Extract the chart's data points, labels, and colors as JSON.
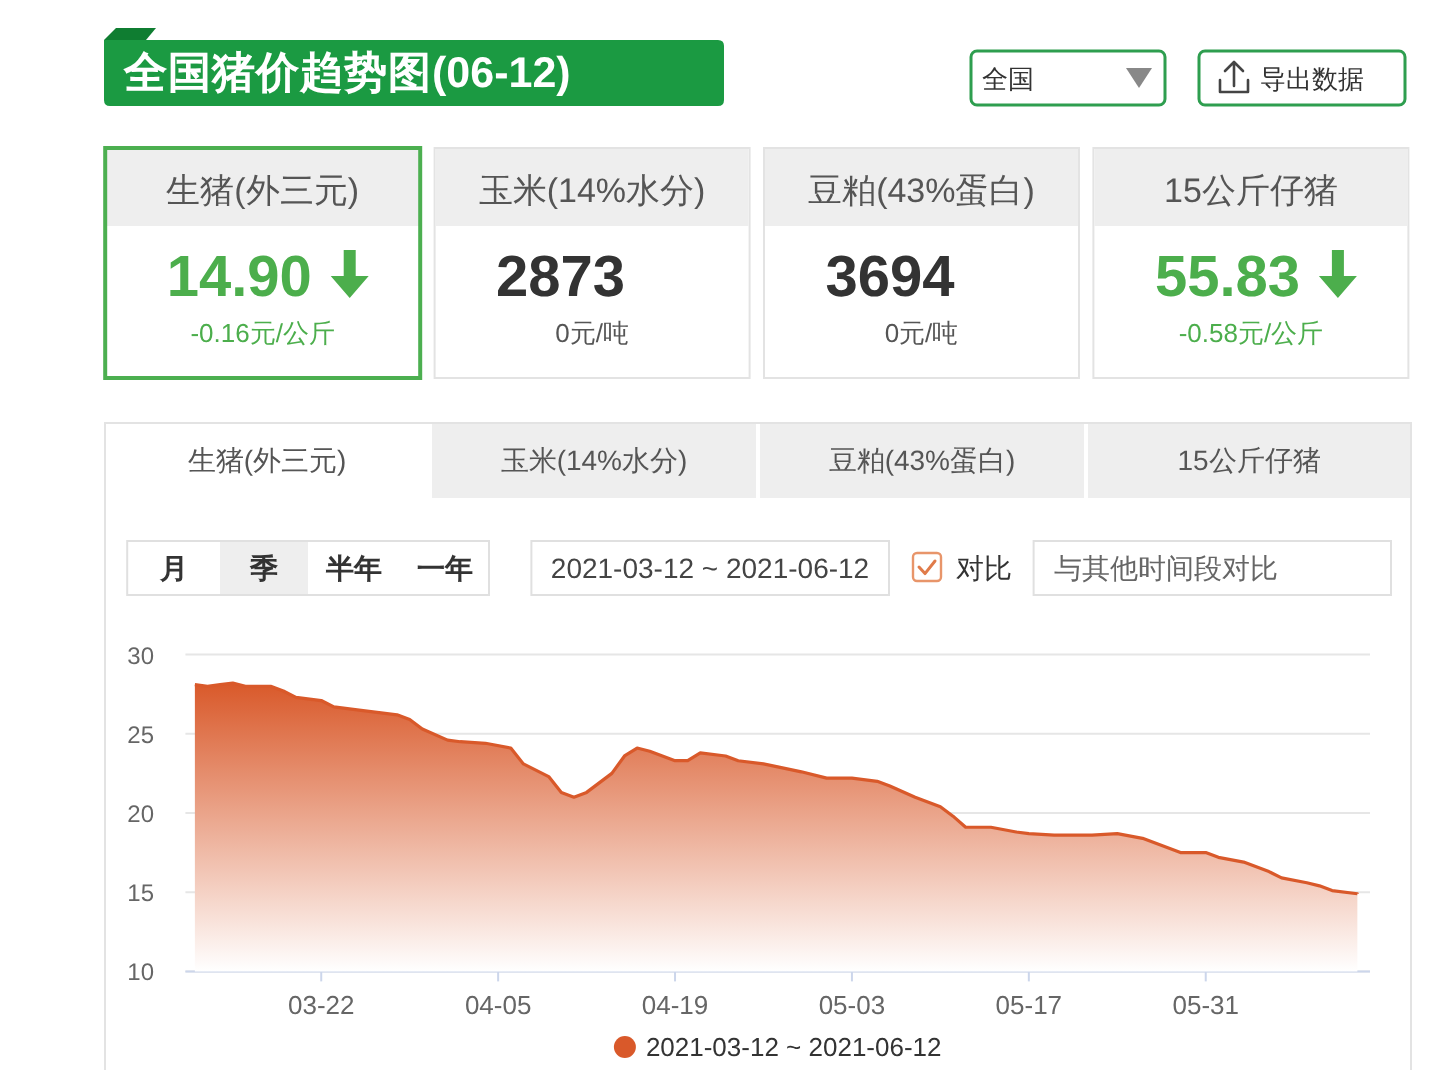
{
  "chart_data": [
    {
      "type": "other",
      "title": "全国猪价趋势图(06-12)",
      "annotations": [
        "全国",
        "导出数据",
        "生猪(外三元)",
        "14.90",
        "-0.16元/公斤",
        "玉米(14%水分)",
        "2873",
        "0元/吨",
        "豆粕(43%蛋白)",
        "3694",
        "0元/吨",
        "15公斤仔猪",
        "55.83",
        "-0.58元/公斤"
      ]
    },
    {
      "type": "area",
      "annotations": [
        "生猪(外三元)",
        "玉米(14%水分)",
        "豆粕(43%蛋白)",
        "15公斤仔猪",
        "月",
        "季",
        "半年",
        "一年",
        "2021-03-12 ~ 2021-06-12",
        "对比",
        "与其他时间段对比"
      ],
      "x": [
        "2021-03-12",
        "2021-03-13",
        "2021-03-14",
        "2021-03-15",
        "2021-03-16",
        "2021-03-18",
        "2021-03-19",
        "2021-03-20",
        "2021-03-22",
        "2021-03-23",
        "2021-03-25",
        "2021-03-28",
        "2021-03-29",
        "2021-03-30",
        "2021-04-01",
        "2021-04-02",
        "2021-04-04",
        "2021-04-06",
        "2021-04-07",
        "2021-04-09",
        "2021-04-10",
        "2021-04-11",
        "2021-04-12",
        "2021-04-14",
        "2021-04-15",
        "2021-04-16",
        "2021-04-17",
        "2021-04-19",
        "2021-04-20",
        "2021-04-21",
        "2021-04-23",
        "2021-04-24",
        "2021-04-26",
        "2021-04-29",
        "2021-05-01",
        "2021-05-03",
        "2021-05-05",
        "2021-05-06",
        "2021-05-08",
        "2021-05-10",
        "2021-05-11",
        "2021-05-12",
        "2021-05-14",
        "2021-05-16",
        "2021-05-17",
        "2021-05-19",
        "2021-05-22",
        "2021-05-24",
        "2021-05-26",
        "2021-05-27",
        "2021-05-29",
        "2021-05-31",
        "2021-06-01",
        "2021-06-03",
        "2021-06-05",
        "2021-06-06",
        "2021-06-08",
        "2021-06-09",
        "2021-06-10",
        "2021-06-12"
      ],
      "series": [
        {
          "name": "2021-03-12 ~ 2021-06-12",
          "color": "#d9592a",
          "values": [
            28.1,
            28.0,
            28.1,
            28.2,
            28.0,
            28.0,
            27.7,
            27.3,
            27.1,
            26.7,
            26.5,
            26.2,
            25.9,
            25.3,
            24.6,
            24.5,
            24.4,
            24.1,
            23.1,
            22.3,
            21.3,
            21.0,
            21.3,
            22.5,
            23.6,
            24.1,
            23.9,
            23.3,
            23.3,
            23.8,
            23.6,
            23.3,
            23.1,
            22.6,
            22.2,
            22.2,
            22.0,
            21.7,
            21.0,
            20.4,
            19.8,
            19.1,
            19.1,
            18.8,
            18.7,
            18.6,
            18.6,
            18.7,
            18.4,
            18.1,
            17.5,
            17.5,
            17.2,
            16.9,
            16.3,
            15.9,
            15.6,
            15.4,
            15.1,
            14.9
          ]
        }
      ],
      "xlim": [
        "2021-03-11T06:00",
        "2021-06-13"
      ],
      "xticks": [
        {
          "value": "2021-03-22",
          "label": "03-22"
        },
        {
          "value": "2021-04-05",
          "label": "04-05"
        },
        {
          "value": "2021-04-19",
          "label": "04-19"
        },
        {
          "value": "2021-05-03",
          "label": "05-03"
        },
        {
          "value": "2021-05-17",
          "label": "05-17"
        },
        {
          "value": "2021-05-31",
          "label": "05-31"
        }
      ],
      "ylim": [
        10,
        30
      ],
      "yticks": [
        10,
        15,
        20,
        25,
        30
      ],
      "grid": "y",
      "legend": "bottom"
    }
  ]
}
